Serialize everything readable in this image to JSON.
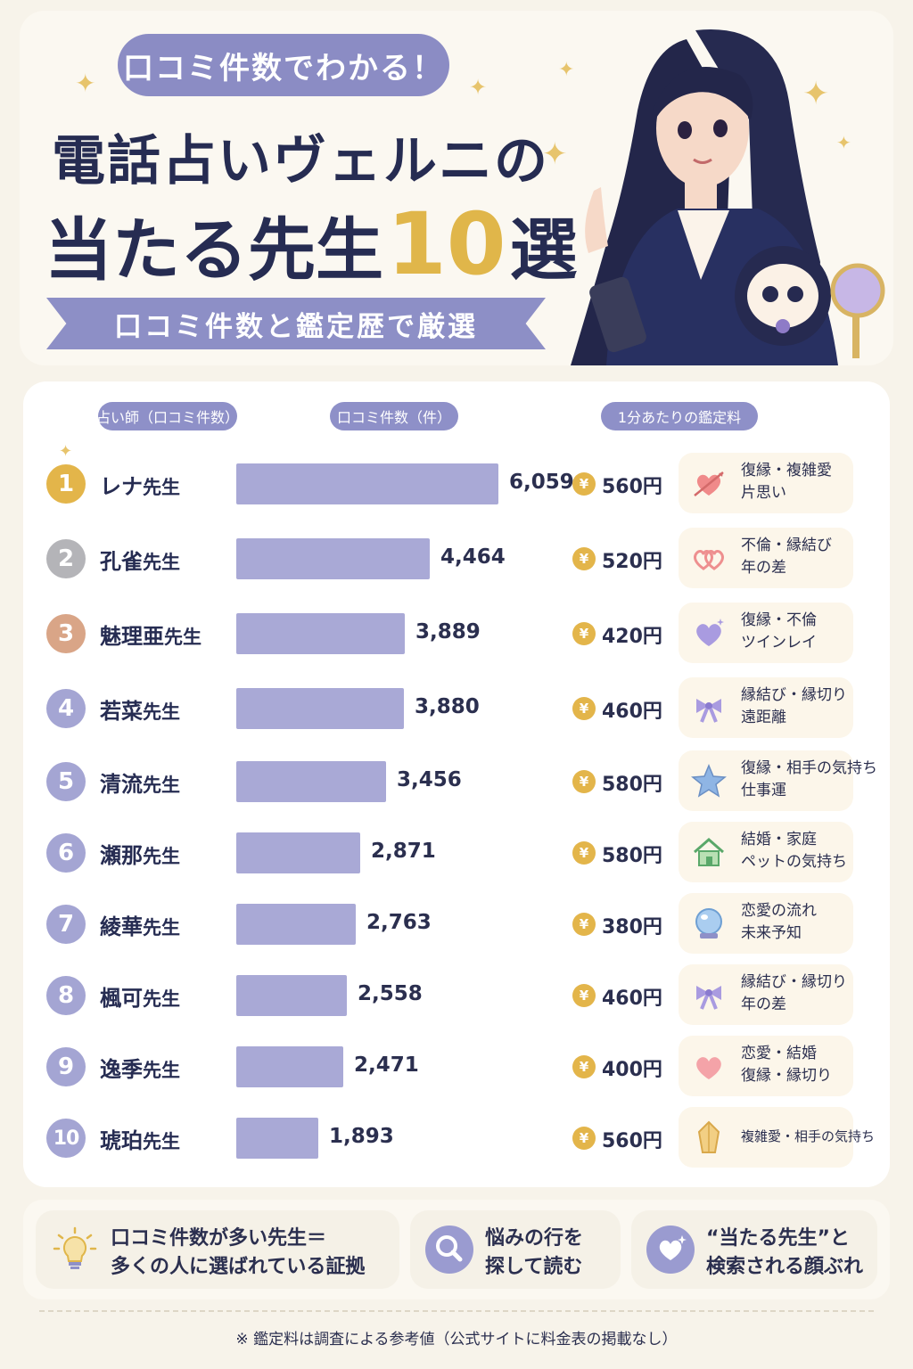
{
  "header": {
    "pill": "口コミ件数でわかる！",
    "title_line1": "電話占いヴェルニの",
    "title_line2_a": "当たる先生",
    "title_line2_num": "10",
    "title_line2_b": "選",
    "ribbon": "口コミ件数と鑑定歴で厳選"
  },
  "columns": {
    "fortune_teller": "占い師（口コミ件数）",
    "reviews": "口コミ件数（件）",
    "price_per_min": "1分あたりの鑑定料"
  },
  "colors": {
    "bar": "#a9a9d6",
    "accent_purple": "#8b8cc4",
    "gold": "#e0b64a",
    "rank_gold": "#e3b54a",
    "rank_silver": "#b4b4b8",
    "rank_bronze": "#d9a587",
    "rank_default": "#a4a5d3"
  },
  "chart_data": {
    "type": "bar",
    "orientation": "horizontal",
    "categories": [
      "レナ先生",
      "孔雀先生",
      "魅理亜先生",
      "若菜先生",
      "清流先生",
      "瀬那先生",
      "綾華先生",
      "楓可先生",
      "逸季先生",
      "琥珀先生"
    ],
    "values": [
      6059,
      4464,
      3889,
      3880,
      3456,
      2871,
      2763,
      2558,
      2471,
      1893
    ],
    "xlim": [
      0,
      6500
    ]
  },
  "rows": [
    {
      "rank": "1",
      "name": "レナ",
      "suffix": "先生",
      "reviews": "6,059",
      "price": "560円",
      "tags": [
        "復縁・複雑愛",
        "片思い"
      ],
      "icon": "heart-arrow-icon"
    },
    {
      "rank": "2",
      "name": "孔雀",
      "suffix": "先生",
      "reviews": "4,464",
      "price": "520円",
      "tags": [
        "不倫・縁結び",
        "年の差"
      ],
      "icon": "linked-hearts-icon"
    },
    {
      "rank": "3",
      "name": "魅理亜",
      "suffix": "先生",
      "reviews": "3,889",
      "price": "420円",
      "tags": [
        "復縁・不倫",
        "ツインレイ"
      ],
      "icon": "purple-heart-icon"
    },
    {
      "rank": "4",
      "name": "若菜",
      "suffix": "先生",
      "reviews": "3,880",
      "price": "460円",
      "tags": [
        "縁結び・縁切り",
        "遠距離"
      ],
      "icon": "ribbon-bow-icon"
    },
    {
      "rank": "5",
      "name": "清流",
      "suffix": "先生",
      "reviews": "3,456",
      "price": "580円",
      "tags": [
        "復縁・相手の気持ち",
        "仕事運"
      ],
      "icon": "star-icon"
    },
    {
      "rank": "6",
      "name": "瀬那",
      "suffix": "先生",
      "reviews": "2,871",
      "price": "580円",
      "tags": [
        "結婚・家庭",
        "ペットの気持ち"
      ],
      "icon": "house-icon"
    },
    {
      "rank": "7",
      "name": "綾華",
      "suffix": "先生",
      "reviews": "2,763",
      "price": "380円",
      "tags": [
        "恋愛の流れ",
        "未来予知"
      ],
      "icon": "crystal-ball-icon"
    },
    {
      "rank": "8",
      "name": "楓可",
      "suffix": "先生",
      "reviews": "2,558",
      "price": "460円",
      "tags": [
        "縁結び・縁切り",
        "年の差"
      ],
      "icon": "ribbon-bow-icon"
    },
    {
      "rank": "9",
      "name": "逸季",
      "suffix": "先生",
      "reviews": "2,471",
      "price": "400円",
      "tags": [
        "恋愛・結婚",
        "復縁・縁切り"
      ],
      "icon": "pink-heart-icon"
    },
    {
      "rank": "10",
      "name": "琥珀",
      "suffix": "先生",
      "reviews": "1,893",
      "price": "560円",
      "tags": [
        "複雑愛・相手の気持ち"
      ],
      "icon": "amber-crystal-icon"
    }
  ],
  "tips": [
    {
      "line1": "口コミ件数が多い先生＝",
      "line2": "多くの人に選ばれている証拠",
      "icon": "lightbulb-icon"
    },
    {
      "line1": "悩みの行を",
      "line2": "探して読む",
      "icon": "magnifier-icon"
    },
    {
      "line1": "“当たる先生”と",
      "line2": "検索される顔ぶれ",
      "icon": "heart-sparkle-icon"
    }
  ],
  "footnote": "※ 鑑定料は調査による参考値（公式サイトに料金表の掲載なし）"
}
